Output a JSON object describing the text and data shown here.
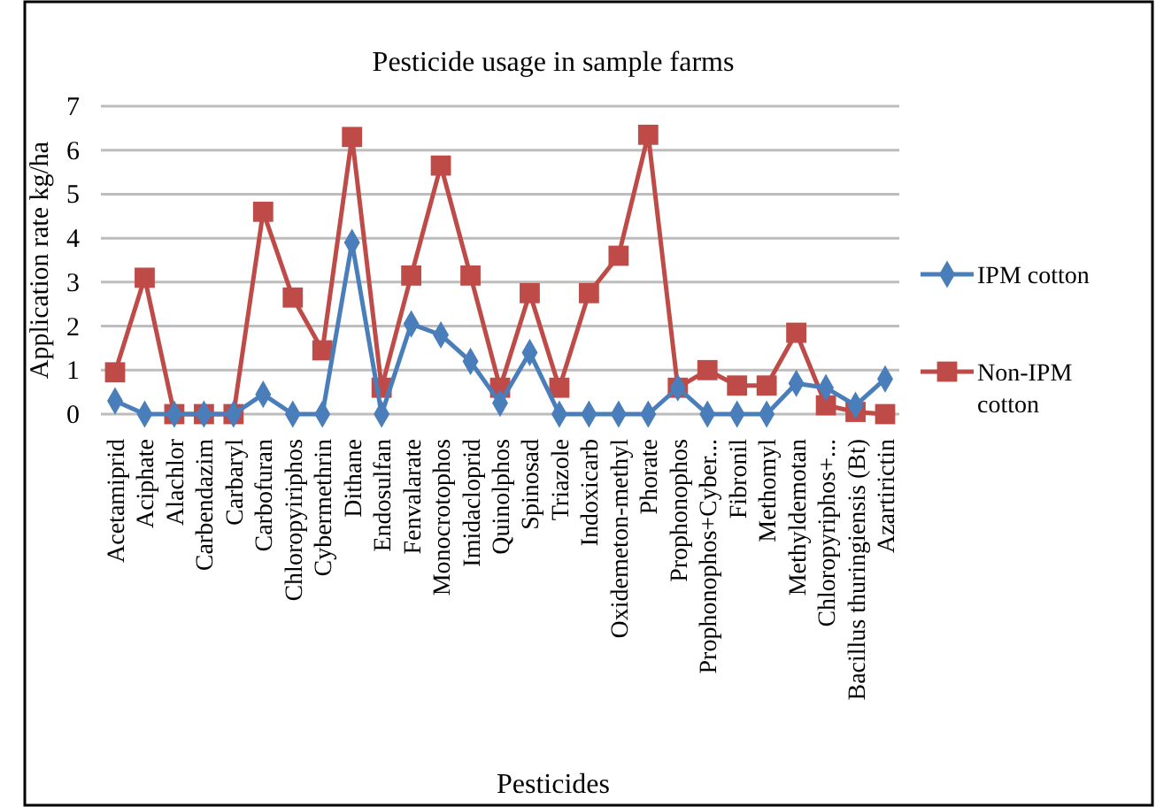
{
  "chart_data": {
    "type": "line",
    "title": "Pesticide usage in sample farms",
    "xlabel": "Pesticides",
    "ylabel": "Application rate  kg/ha",
    "categories": [
      "Acetamiprid",
      "Aciphate",
      "Alachlor",
      "Carbendazim",
      "Carbaryl",
      "Carbofuran",
      "Chloropyiriphos",
      "Cybermethrin",
      "Dithane",
      "Endosulfan",
      "Fenvalarate",
      "Monocrotophos",
      "Imidacloprid",
      "Quinolphos",
      "Spinosad",
      "Triazole",
      "Indoxicarb",
      "Oxidemeton-methyl",
      "Phorate",
      "Prophonophos",
      "Prophonophos+Cyber...",
      "Fibronil",
      "Methomyl",
      "Methyldemotan",
      "Chloropyriphos+...",
      "Bacillus thuringiensis (Bt)",
      "Azartirictin"
    ],
    "series": [
      {
        "name": "IPM cotton",
        "color": "#4a7ebb",
        "marker": "diamond",
        "values": [
          0.3,
          0,
          0,
          0,
          0,
          0.45,
          0,
          0,
          3.9,
          0,
          2.05,
          1.8,
          1.2,
          0.25,
          1.4,
          0,
          0,
          0,
          0,
          0.6,
          0,
          0,
          0,
          0.7,
          0.6,
          0.2,
          0.8
        ]
      },
      {
        "name": "Non-IPM cotton",
        "color": "#be4b48",
        "marker": "square",
        "values": [
          0.95,
          3.1,
          0,
          0,
          0,
          4.6,
          2.65,
          1.45,
          6.3,
          0.6,
          3.15,
          5.65,
          3.15,
          0.6,
          2.75,
          0.6,
          2.75,
          3.6,
          6.35,
          0.6,
          1.0,
          0.65,
          0.65,
          1.85,
          0.2,
          0.05,
          0
        ]
      }
    ],
    "ylim": [
      0,
      7
    ],
    "yticks": [
      0,
      1,
      2,
      3,
      4,
      5,
      6,
      7
    ],
    "grid": "y",
    "legend": "right"
  }
}
